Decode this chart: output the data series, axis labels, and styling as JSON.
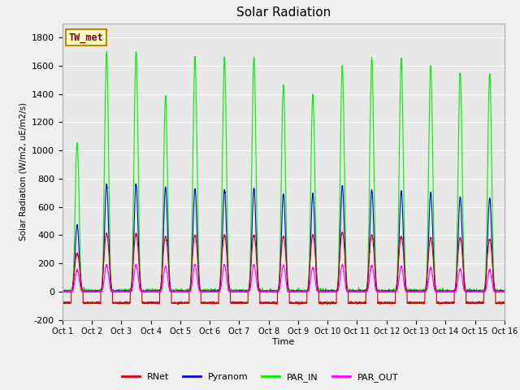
{
  "title": "Solar Radiation",
  "ylabel": "Solar Radiation (W/m2, uE/m2/s)",
  "xlabel": "Time",
  "ylim": [
    -200,
    1900
  ],
  "yticks": [
    -200,
    0,
    200,
    400,
    600,
    800,
    1000,
    1200,
    1400,
    1600,
    1800
  ],
  "xtick_labels": [
    "Oct 1",
    "Oct 2",
    "Oct 3",
    "Oct 4",
    "Oct 5",
    "Oct 6",
    "Oct 7",
    "Oct 8",
    "Oct 9",
    "Oct 10",
    "Oct 11",
    "Oct 12",
    "Oct 13",
    "Oct 14",
    "Oct 15",
    "Oct 16"
  ],
  "legend_labels": [
    "RNet",
    "Pyranom",
    "PAR_IN",
    "PAR_OUT"
  ],
  "legend_colors": [
    "#dd0000",
    "#0000dd",
    "#00ee00",
    "#ff00ff"
  ],
  "station_label": "TW_met",
  "station_label_color": "#bb8800",
  "n_days": 15,
  "points_per_day": 288,
  "par_in_peaks": [
    1050,
    1700,
    1700,
    1380,
    1660,
    1660,
    1660,
    1460,
    1400,
    1590,
    1650,
    1640,
    1600,
    1550,
    1540
  ],
  "pyranom_peaks": [
    470,
    760,
    760,
    740,
    730,
    720,
    730,
    690,
    690,
    750,
    720,
    710,
    700,
    670,
    660
  ],
  "rnet_peaks": [
    270,
    410,
    410,
    390,
    400,
    400,
    400,
    390,
    400,
    420,
    400,
    390,
    380,
    380,
    370
  ],
  "par_out_peaks": [
    155,
    190,
    190,
    180,
    190,
    190,
    190,
    185,
    170,
    190,
    185,
    180,
    170,
    160,
    155
  ],
  "rnet_night": -80,
  "line_width": 0.8
}
